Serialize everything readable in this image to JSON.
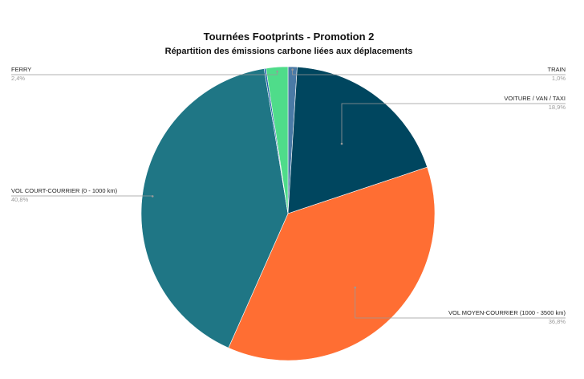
{
  "chart_data": {
    "type": "pie",
    "title": "Tournées Footprints - Promotion 2",
    "subtitle": "Répartition des émissions carbone liées aux déplacements",
    "categories": [
      "TRAIN",
      "VOITURE / VAN / TAXI",
      "VOL MOYEN-COURRIER (1000 - 3500 km)",
      "VOL COURT-COURRIER (0 - 1000 km)",
      "FERRY"
    ],
    "values": [
      1.0,
      18.9,
      36.8,
      40.8,
      2.4
    ],
    "value_labels": [
      "1,0%",
      "18,9%",
      "36,8%",
      "40,8%",
      "2,4%"
    ],
    "colors": [
      "#4a7aa6",
      "#00465f",
      "#ff6e33",
      "#1f7685",
      "#4fdc8a"
    ],
    "unlabeled_slice": {
      "value": 0.2,
      "color": "#1f5fa6"
    },
    "start_angle_deg": 0,
    "direction": "clockwise",
    "legend": "none"
  }
}
